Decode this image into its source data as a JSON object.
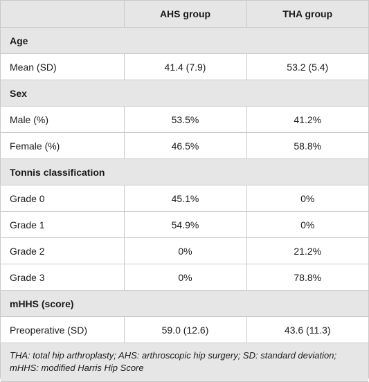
{
  "header": {
    "col1": "",
    "col2": "AHS group",
    "col3": "THA group"
  },
  "sections": {
    "age": {
      "title": "Age",
      "rows": [
        {
          "label": "Mean (SD)",
          "ahs": "41.4 (7.9)",
          "tha": "53.2 (5.4)"
        }
      ]
    },
    "sex": {
      "title": "Sex",
      "rows": [
        {
          "label": "Male (%)",
          "ahs": "53.5%",
          "tha": "41.2%"
        },
        {
          "label": "Female (%)",
          "ahs": "46.5%",
          "tha": "58.8%"
        }
      ]
    },
    "tonnis": {
      "title": "Tonnis classification",
      "rows": [
        {
          "label": "Grade 0",
          "ahs": "45.1%",
          "tha": "0%"
        },
        {
          "label": "Grade 1",
          "ahs": "54.9%",
          "tha": "0%"
        },
        {
          "label": "Grade 2",
          "ahs": "0%",
          "tha": "21.2%"
        },
        {
          "label": "Grade 3",
          "ahs": "0%",
          "tha": "78.8%"
        }
      ]
    },
    "mhhs": {
      "title": "mHHS (score)",
      "rows": [
        {
          "label": "Preoperative (SD)",
          "ahs": "59.0 (12.6)",
          "tha": "43.6 (11.3)"
        }
      ]
    }
  },
  "footnote": "THA: total hip arthroplasty; AHS: arthroscopic hip surgery; SD: standard deviation; mHHS: modified Harris Hip Score"
}
